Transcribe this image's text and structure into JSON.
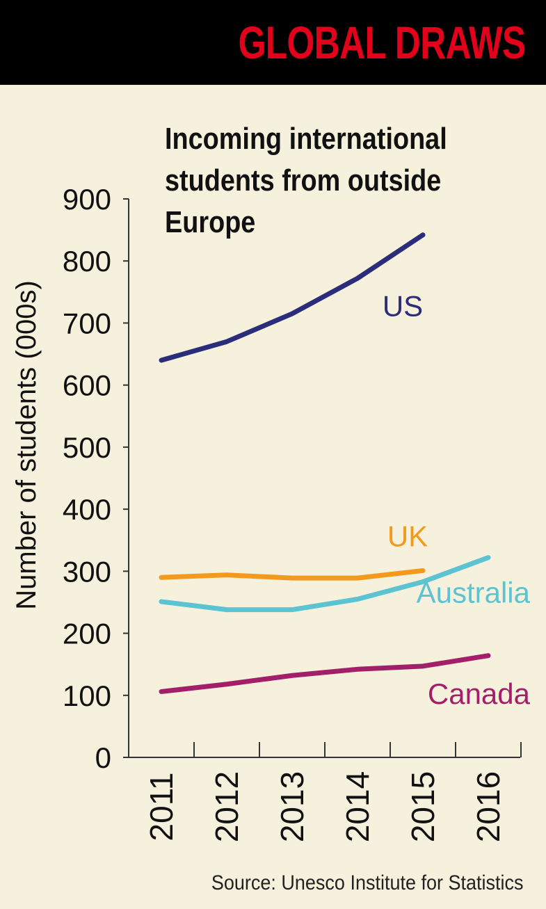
{
  "header": {
    "title": "GLOBAL DRAWS"
  },
  "source": "Source: Unesco Institute for Statistics",
  "colors": {
    "background": "#f6f1dc",
    "header_bg": "#000000",
    "header_text": "#e3001b",
    "axis": "#333333"
  },
  "chart_data": {
    "type": "line",
    "title": "Incoming international students from outside Europe",
    "xlabel": "",
    "ylabel": "Number of students (000s)",
    "x": [
      2011,
      2012,
      2013,
      2014,
      2015,
      2016
    ],
    "x_tick_labels": [
      "2011",
      "2012",
      "2013",
      "2014",
      "2015",
      "2016"
    ],
    "y_ticks": [
      0,
      100,
      200,
      300,
      400,
      500,
      600,
      700,
      800,
      900
    ],
    "ylim": [
      0,
      900
    ],
    "grid": false,
    "legend": "inline labels at line ends",
    "series": [
      {
        "name": "US",
        "color": "#2b2d7a",
        "x": [
          2011,
          2012,
          2013,
          2014,
          2015
        ],
        "values": [
          640,
          670,
          715,
          772,
          842
        ]
      },
      {
        "name": "UK",
        "color": "#f39a1c",
        "x": [
          2011,
          2012,
          2013,
          2014,
          2015
        ],
        "values": [
          290,
          294,
          289,
          289,
          301
        ]
      },
      {
        "name": "Australia",
        "color": "#5bc3d1",
        "x": [
          2011,
          2012,
          2013,
          2014,
          2015,
          2016
        ],
        "values": [
          251,
          238,
          238,
          255,
          283,
          322
        ]
      },
      {
        "name": "Canada",
        "color": "#a31f6a",
        "x": [
          2011,
          2012,
          2013,
          2014,
          2015,
          2016
        ],
        "values": [
          106,
          118,
          132,
          142,
          147,
          164
        ]
      }
    ]
  }
}
